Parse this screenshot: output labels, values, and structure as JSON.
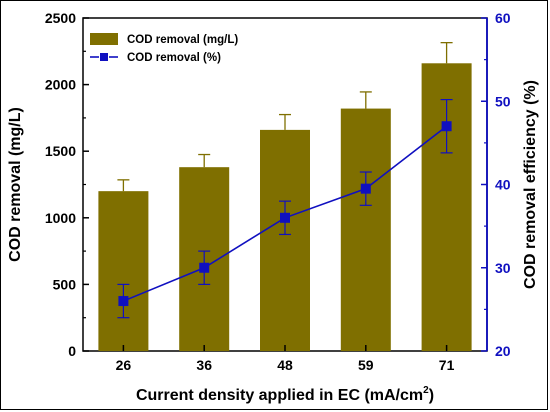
{
  "chart_data": {
    "type": "bar",
    "categories": [
      "26",
      "36",
      "48",
      "59",
      "71"
    ],
    "xlabel_main": "Current density applied in EC (mA/cm",
    "xlabel_sup": "2",
    "xlabel_close": ")",
    "ylabel_left": "COD removal (mg/L)",
    "ylabel_right": "COD removal efficiency (%)",
    "ylim_left": [
      0,
      2500
    ],
    "ylim_right": [
      20,
      60
    ],
    "yticks_left": [
      "0",
      "500",
      "1000",
      "1500",
      "2000",
      "2500"
    ],
    "yticks_right": [
      "20",
      "30",
      "40",
      "50",
      "60"
    ],
    "series": [
      {
        "name": "COD removal (mg/L)",
        "kind": "bar",
        "axis": "left",
        "color": "#7f6f00",
        "values": [
          1200,
          1380,
          1660,
          1820,
          2160
        ],
        "error": [
          85,
          95,
          115,
          125,
          155
        ]
      },
      {
        "name": "COD removal (%)",
        "kind": "line",
        "axis": "right",
        "color": "#1010c0",
        "values": [
          26.0,
          30.0,
          36.0,
          39.5,
          47.0
        ],
        "error": [
          2.0,
          2.0,
          2.0,
          2.0,
          3.2
        ]
      }
    ],
    "legend_position": "top-left",
    "grid": false
  }
}
